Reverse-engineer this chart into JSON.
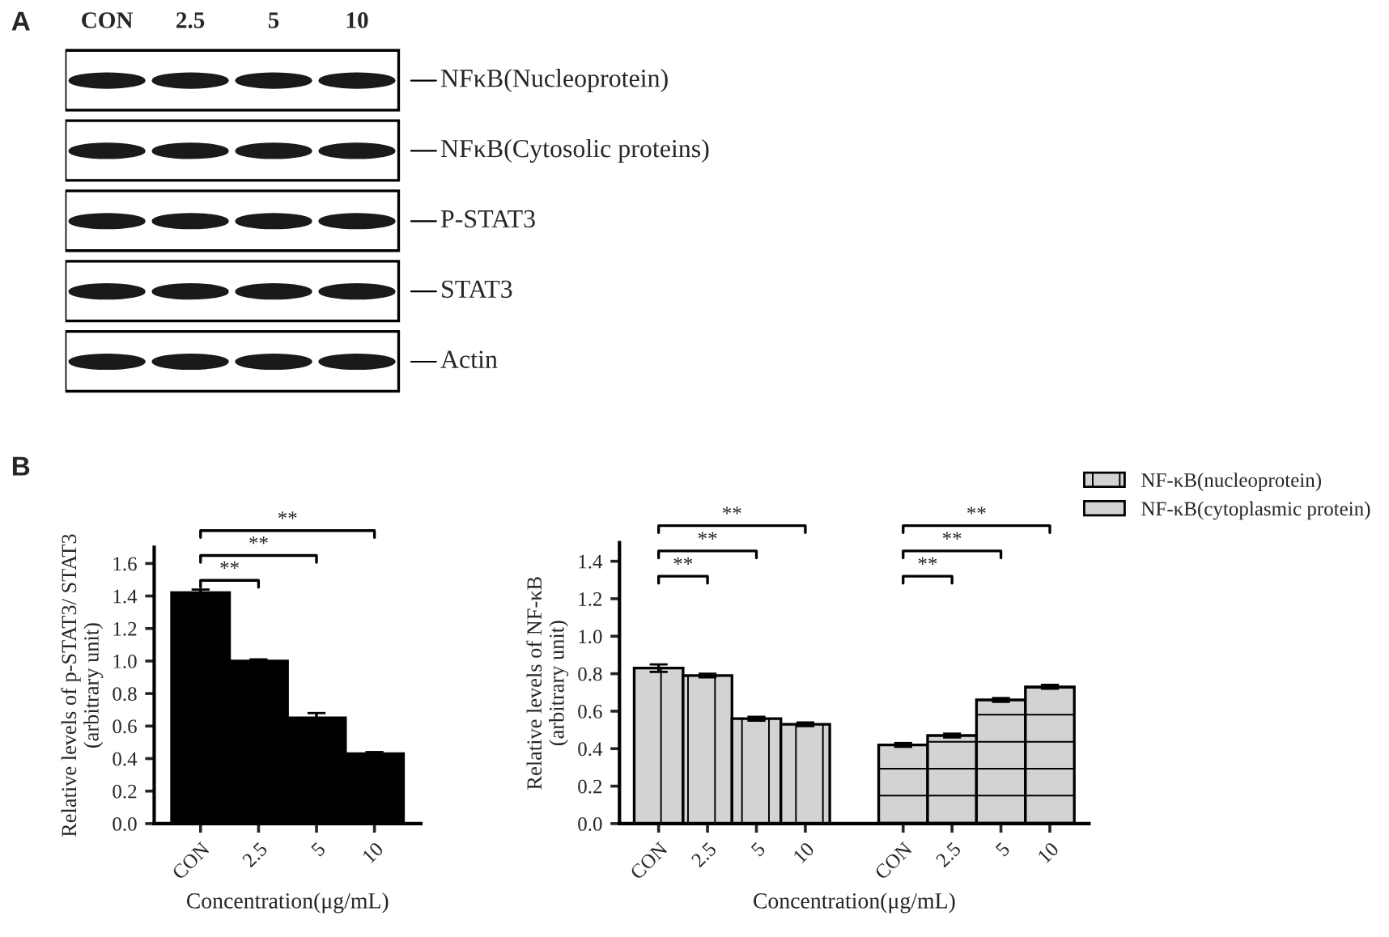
{
  "chart_data": [
    {
      "type": "other",
      "title": "A",
      "categories": [
        "CON",
        "2.5",
        "5",
        "10"
      ],
      "y_categories": [
        "NFκB(Nucleoprotein)",
        "NFκB(Cytosolic proteins)",
        "P-STAT3",
        "STAT3",
        "Actin"
      ]
    },
    {
      "type": "bar",
      "title": "B",
      "categories": [
        "CON",
        "2.5",
        "5",
        "10"
      ],
      "values": [
        1.42,
        1.0,
        0.65,
        0.43
      ],
      "errors": [
        0.02,
        0.01,
        0.03,
        0.01
      ],
      "color": "#000000",
      "xlabel": "Concentration(μg/mL)",
      "ylabel": "Relative levels of p-STAT3/ STAT3\n(arbitrary unit)",
      "ylim": [
        0,
        1.7
      ],
      "yticks": [
        {
          "value": 0,
          "label": "0.0"
        },
        {
          "value": 0.2,
          "label": "0.2"
        },
        {
          "value": 0.4,
          "label": "0.4"
        },
        {
          "value": 0.6,
          "label": "0.6"
        },
        {
          "value": 0.8,
          "label": "0.8"
        },
        {
          "value": 1.0,
          "label": "1.0"
        },
        {
          "value": 1.2,
          "label": "1.2"
        },
        {
          "value": 1.4,
          "label": "1.4"
        },
        {
          "value": 1.6,
          "label": "1.6"
        }
      ],
      "annotations": [
        "**",
        "**",
        "**"
      ],
      "grid": false,
      "legend": false
    },
    {
      "type": "bar",
      "categories": [
        "CON",
        "2.5",
        "5",
        "10",
        null,
        "CON",
        "2.5",
        "5",
        "10"
      ],
      "series": [
        {
          "name": "NF-κB(nucleoprotein)",
          "color": "#d3d3d3",
          "values": [
            0.83,
            0.79,
            0.56,
            0.53,
            null,
            null,
            null,
            null,
            null
          ],
          "errors": [
            0.02,
            0.01,
            0.01,
            0.01,
            null,
            null,
            null,
            null,
            null
          ]
        },
        {
          "name": "NF-κB(cytoplasmic protein)",
          "color": "#d3d3d3",
          "values": [
            null,
            null,
            null,
            null,
            null,
            0.42,
            0.47,
            0.66,
            0.73
          ],
          "errors": [
            null,
            null,
            null,
            null,
            null,
            0.01,
            0.01,
            0.01,
            0.01
          ]
        }
      ],
      "xlabel": "Concentration(μg/mL)",
      "ylabel": "Relative levels of NF-κB\n(arbitrary unit)",
      "ylim": [
        0,
        1.5
      ],
      "yticks": [
        {
          "value": 0,
          "label": "0.0"
        },
        {
          "value": 0.2,
          "label": "0.2"
        },
        {
          "value": 0.4,
          "label": "0.4"
        },
        {
          "value": 0.6,
          "label": "0.6"
        },
        {
          "value": 0.8,
          "label": "0.8"
        },
        {
          "value": 1.0,
          "label": "1.0"
        },
        {
          "value": 1.2,
          "label": "1.2"
        },
        {
          "value": 1.4,
          "label": "1.4"
        }
      ],
      "annotations": [
        "**",
        "**",
        "**",
        "**",
        "**",
        "**"
      ],
      "grid": false,
      "legend": "top right"
    }
  ]
}
